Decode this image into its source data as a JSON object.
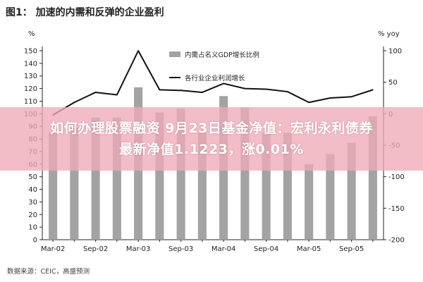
{
  "chart_data": {
    "type": "bar",
    "title": "图1： 加速的内需和反弹的企业盈利",
    "left_unit": "%",
    "right_unit": "% yoy",
    "categories": [
      "Mar-02",
      "Jun-02",
      "Sep-02",
      "Dec-02",
      "Mar-03",
      "Jun-03",
      "Sep-03",
      "Dec-03",
      "Mar-04",
      "Jun-04",
      "Sep-04",
      "Dec-04",
      "Mar-05",
      "Jun-05",
      "Sep-05",
      "Dec-05"
    ],
    "x_tick_labels": [
      "Mar-02",
      "Sep-02",
      "Mar-03",
      "Sep-03",
      "Mar-04",
      "Sep-04",
      "Mar-05",
      "Sep-05"
    ],
    "left_axis": {
      "min": 0,
      "max": 150,
      "step": 10,
      "ticks": [
        0,
        10,
        20,
        30,
        40,
        50,
        60,
        70,
        80,
        90,
        100,
        110,
        120,
        130,
        140,
        150
      ]
    },
    "right_axis": {
      "min": -200,
      "max": 100,
      "step": 50,
      "ticks": [
        -200,
        -150,
        -100,
        -50,
        0,
        50,
        100
      ]
    },
    "series": [
      {
        "name": "内需占名义GDP增长比例",
        "type": "bar",
        "axis": "left",
        "color": "#a3a3a3",
        "values": [
          85,
          89,
          97,
          97,
          121,
          101,
          104,
          85,
          114,
          105,
          85,
          85,
          60,
          68,
          77,
          98
        ]
      },
      {
        "name": "各行业企业利润增长",
        "type": "line",
        "axis": "right",
        "color": "#111111",
        "values": [
          -2,
          18,
          34,
          30,
          100,
          38,
          37,
          34,
          48,
          40,
          39,
          35,
          18,
          25,
          27,
          38
        ]
      }
    ],
    "grid": false,
    "legend_position": "top-right"
  },
  "source": "数据来源：CEIC，高盛预测",
  "banner": {
    "line1": "如何办理股票融资 9月23日基金净值：宏利永利债券",
    "line2": "最新净值1.1223，涨0.01%"
  }
}
